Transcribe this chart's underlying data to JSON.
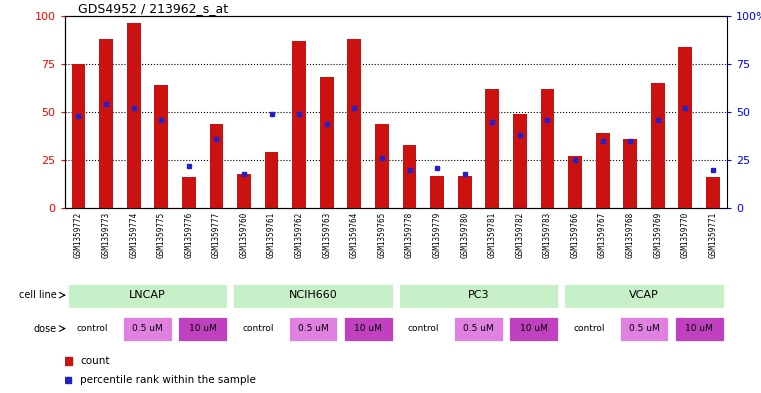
{
  "title": "GDS4952 / 213962_s_at",
  "samples": [
    "GSM1359772",
    "GSM1359773",
    "GSM1359774",
    "GSM1359775",
    "GSM1359776",
    "GSM1359777",
    "GSM1359760",
    "GSM1359761",
    "GSM1359762",
    "GSM1359763",
    "GSM1359764",
    "GSM1359765",
    "GSM1359778",
    "GSM1359779",
    "GSM1359780",
    "GSM1359781",
    "GSM1359782",
    "GSM1359783",
    "GSM1359766",
    "GSM1359767",
    "GSM1359768",
    "GSM1359769",
    "GSM1359770",
    "GSM1359771"
  ],
  "counts": [
    75,
    88,
    96,
    64,
    16,
    44,
    18,
    29,
    87,
    68,
    88,
    44,
    33,
    17,
    17,
    62,
    49,
    62,
    27,
    39,
    36,
    65,
    84,
    16
  ],
  "percentiles": [
    48,
    54,
    52,
    46,
    22,
    36,
    18,
    49,
    49,
    44,
    52,
    26,
    20,
    21,
    18,
    45,
    38,
    46,
    25,
    35,
    35,
    46,
    52,
    20
  ],
  "cell_lines": [
    "LNCAP",
    "NCIH660",
    "PC3",
    "VCAP"
  ],
  "cell_line_spans": [
    [
      0,
      6
    ],
    [
      6,
      12
    ],
    [
      12,
      18
    ],
    [
      18,
      24
    ]
  ],
  "cell_line_color_light": "#c8f0c8",
  "cell_line_color_dark": "#50c850",
  "doses": [
    "control",
    "0.5 uM",
    "10 uM",
    "control",
    "0.5 uM",
    "10 uM",
    "control",
    "0.5 uM",
    "10 uM",
    "control",
    "0.5 uM",
    "10 uM"
  ],
  "dose_colors": [
    "#ffffff",
    "#e080e0",
    "#c040c0",
    "#ffffff",
    "#e080e0",
    "#c040c0",
    "#ffffff",
    "#e080e0",
    "#c040c0",
    "#ffffff",
    "#e080e0",
    "#c040c0"
  ],
  "bar_color": "#cc1111",
  "percentile_color": "#2222cc",
  "tick_bg_color": "#cccccc",
  "ylim": [
    0,
    100
  ],
  "grid_values": [
    25,
    50,
    75
  ],
  "legend_count": "count",
  "legend_pct": "percentile rank within the sample"
}
